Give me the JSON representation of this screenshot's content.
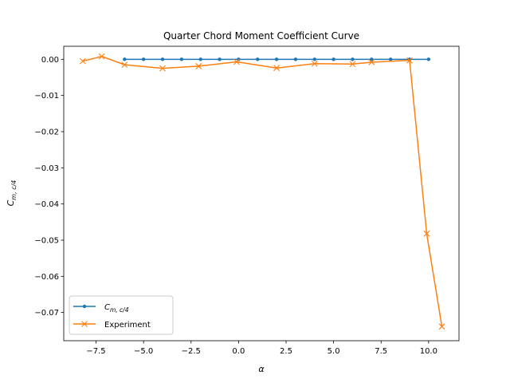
{
  "chart_data": {
    "type": "line",
    "title": "Quarter Chord Moment Coefficient Curve",
    "xlabel": "α",
    "ylabel_main": "C",
    "ylabel_sub": "m, c/4",
    "xlim": [
      -9.2,
      11.6
    ],
    "ylim": [
      -0.0778,
      0.0036
    ],
    "xticks": [
      {
        "value": -7.5,
        "label": "−7.5"
      },
      {
        "value": -5.0,
        "label": "−5.0"
      },
      {
        "value": -2.5,
        "label": "−2.5"
      },
      {
        "value": 0.0,
        "label": "0.0"
      },
      {
        "value": 2.5,
        "label": "2.5"
      },
      {
        "value": 5.0,
        "label": "5.0"
      },
      {
        "value": 7.5,
        "label": "7.5"
      },
      {
        "value": 10.0,
        "label": "10.0"
      }
    ],
    "yticks": [
      {
        "value": 0.0,
        "label": "0.00"
      },
      {
        "value": -0.01,
        "label": "−0.01"
      },
      {
        "value": -0.02,
        "label": "−0.02"
      },
      {
        "value": -0.03,
        "label": "−0.03"
      },
      {
        "value": -0.04,
        "label": "−0.04"
      },
      {
        "value": -0.05,
        "label": "−0.05"
      },
      {
        "value": -0.06,
        "label": "−0.06"
      },
      {
        "value": -0.07,
        "label": "−0.07"
      }
    ],
    "legend_position": "lower-left",
    "grid": false,
    "series": [
      {
        "name_main": "C",
        "name_sub": "m, c/4",
        "color": "#1f77b4",
        "marker": "dot",
        "x": [
          -6,
          -5,
          -4,
          -3,
          -2,
          -1,
          0,
          1,
          2,
          3,
          4,
          5,
          6,
          7,
          8,
          9,
          10
        ],
        "y": [
          0,
          0,
          0,
          0,
          0,
          0,
          0,
          0,
          0,
          0,
          0,
          0,
          0,
          0,
          0,
          0,
          0
        ]
      },
      {
        "name_main": "Experiment",
        "name_sub": "",
        "color": "#ff7f0e",
        "marker": "x",
        "x": [
          -8.2,
          -7.2,
          -6.0,
          -4.0,
          -2.1,
          -0.1,
          2.0,
          4.0,
          6.0,
          7.0,
          9.0,
          9.9,
          10.7
        ],
        "y": [
          -0.0005,
          0.0008,
          -0.0015,
          -0.0025,
          -0.0019,
          -0.0007,
          -0.0024,
          -0.0012,
          -0.0013,
          -0.0008,
          -0.0003,
          -0.0482,
          -0.0739
        ]
      }
    ]
  }
}
